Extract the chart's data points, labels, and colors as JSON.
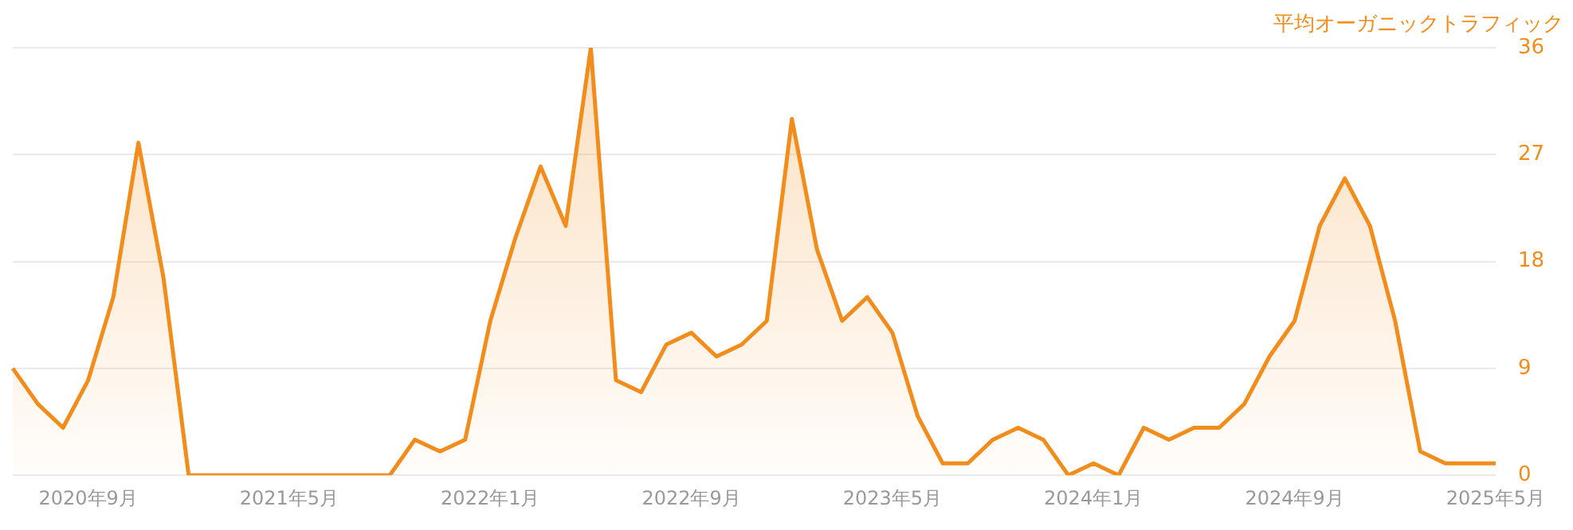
{
  "chart_data": {
    "type": "area",
    "ylabel": "平均オーガニックトラフィック",
    "categories": [
      null,
      null,
      null,
      "2020年9月",
      null,
      null,
      null,
      null,
      null,
      null,
      null,
      "2021年5月",
      null,
      null,
      null,
      null,
      null,
      null,
      null,
      "2022年1月",
      null,
      null,
      null,
      null,
      null,
      null,
      null,
      "2022年9月",
      null,
      null,
      null,
      null,
      null,
      null,
      null,
      "2023年5月",
      null,
      null,
      null,
      null,
      null,
      null,
      null,
      "2024年1月",
      null,
      null,
      null,
      null,
      null,
      null,
      null,
      "2024年9月",
      null,
      null,
      null,
      null,
      null,
      null,
      null,
      "2025年5月"
    ],
    "series": [
      {
        "color": "#f28c1a",
        "values": [
          9,
          6,
          4,
          8,
          15,
          28,
          16.6,
          0,
          0,
          0,
          0,
          0,
          0,
          0,
          0,
          0,
          3,
          2,
          3,
          13,
          20,
          26,
          21,
          36,
          8,
          7,
          11,
          12,
          10,
          11,
          13,
          30,
          19,
          13,
          15,
          12,
          5,
          1,
          1,
          3,
          4,
          3,
          0,
          1,
          0,
          4,
          3,
          4,
          4,
          6,
          10,
          13,
          21,
          25,
          21,
          13,
          2,
          1,
          1,
          1
        ]
      }
    ],
    "ylim": [
      0,
      36
    ],
    "yticks": [
      0,
      9,
      18,
      27,
      36
    ],
    "grid": "y",
    "legend": false,
    "marker": "none",
    "line_style": "solid"
  }
}
